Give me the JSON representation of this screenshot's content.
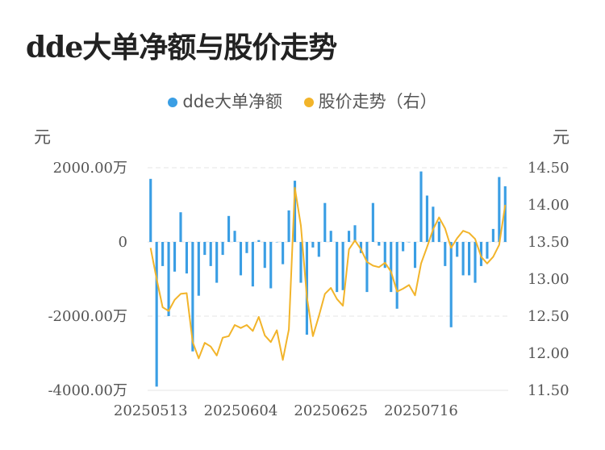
{
  "title": "dde大单净额与股价走势",
  "legend": [
    {
      "label": "dde大单净额",
      "color": "#3a9ee4"
    },
    {
      "label": "股价走势（右）",
      "color": "#f2b42a"
    }
  ],
  "colors": {
    "bar": "#3a9ee4",
    "line": "#f2b42a"
  },
  "chart_data": {
    "type": "bar+line",
    "left_unit": "元",
    "right_unit": "元",
    "left_ticks": [
      "2000.00万",
      "0",
      "-2000.00万",
      "-4000.00万"
    ],
    "left_tick_values": [
      2000,
      0,
      -2000,
      -4000
    ],
    "right_ticks": [
      "14.50",
      "14.00",
      "13.50",
      "13.00",
      "12.50",
      "12.00",
      "11.50"
    ],
    "right_tick_values": [
      14.5,
      14.0,
      13.5,
      13.0,
      12.5,
      12.0,
      11.5
    ],
    "ylim_left": [
      -4000,
      2000
    ],
    "ylim_right": [
      11.5,
      14.5
    ],
    "x_labels": [
      {
        "label": "20250513",
        "index": 0
      },
      {
        "label": "20250604",
        "index": 15
      },
      {
        "label": "20250625",
        "index": 30
      },
      {
        "label": "20250716",
        "index": 45
      }
    ],
    "series": [
      {
        "name": "dde大单净额",
        "type": "bar",
        "axis": "left",
        "values": [
          1700,
          -3900,
          -650,
          -2000,
          -800,
          800,
          -850,
          -2950,
          -1450,
          -350,
          -650,
          -1100,
          -350,
          700,
          300,
          -900,
          -300,
          -1200,
          50,
          -700,
          -1250,
          0,
          -600,
          850,
          1650,
          -1100,
          -2500,
          -150,
          -400,
          1050,
          300,
          -1350,
          -1300,
          300,
          450,
          -300,
          -1350,
          1050,
          -100,
          -700,
          -1350,
          -1800,
          -250,
          0,
          -700,
          1900,
          1250,
          950,
          550,
          -650,
          -2300,
          -400,
          -900,
          -900,
          -1100,
          -650,
          -450,
          350,
          1750,
          1500
        ]
      },
      {
        "name": "股价走势（右）",
        "type": "line",
        "axis": "right",
        "values": [
          13.42,
          13.0,
          12.62,
          12.57,
          12.72,
          12.8,
          12.81,
          12.15,
          11.93,
          12.14,
          12.09,
          11.97,
          12.21,
          12.23,
          12.38,
          12.34,
          12.38,
          12.3,
          12.49,
          12.24,
          12.15,
          12.31,
          11.91,
          12.32,
          14.23,
          13.72,
          12.76,
          12.23,
          12.5,
          12.8,
          12.88,
          12.73,
          12.64,
          13.4,
          13.52,
          13.4,
          13.23,
          13.18,
          13.16,
          13.22,
          13.1,
          12.83,
          12.87,
          12.92,
          12.78,
          13.21,
          13.43,
          13.67,
          13.83,
          13.68,
          13.42,
          13.55,
          13.65,
          13.62,
          13.54,
          13.3,
          13.21,
          13.3,
          13.46,
          14.0
        ]
      }
    ]
  }
}
